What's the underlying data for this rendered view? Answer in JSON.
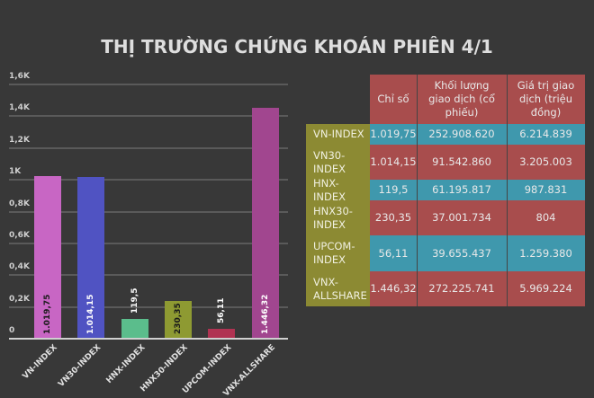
{
  "title": "THỊ TRƯỜNG CHỨNG KHOÁN PHIÊN 4/1",
  "chart_data": {
    "type": "bar",
    "title": "THỊ TRƯỜNG CHỨNG KHOÁN PHIÊN 4/1",
    "categories": [
      "VN-INDEX",
      "VN30-INDEX",
      "HNX-INDEX",
      "HNX30-INDEX",
      "UPCOM-INDEX",
      "VNX-ALLSHARE"
    ],
    "values": [
      1019.75,
      1014.15,
      119.5,
      230.35,
      56.11,
      1446.32
    ],
    "value_labels": [
      "1.019,75",
      "1.014,15",
      "119,5",
      "230,35",
      "56,11",
      "1.446,32"
    ],
    "colors": [
      "#c866c4",
      "#5053c2",
      "#5bbd8c",
      "#8e9a32",
      "#b03352",
      "#a1468f"
    ],
    "yticks": [
      "0",
      "0,2K",
      "0,4K",
      "0,6K",
      "0,8K",
      "1K",
      "1,2K",
      "1,4K",
      "1,6K"
    ],
    "ylim": [
      0,
      1600
    ],
    "xlabel": "",
    "ylabel": "",
    "grid": true,
    "legend": "none"
  },
  "table": {
    "headers": [
      "Chỉ số",
      "Khối lượng giao dịch (cổ phiếu)",
      "Giá trị giao dịch (triệu đồng)"
    ],
    "rows": [
      {
        "name": "VN-INDEX",
        "index": "1.019,75",
        "volume": "252.908.620",
        "value": "6.214.839"
      },
      {
        "name": "VN30-INDEX",
        "index": "1.014,15",
        "volume": "91.542.860",
        "value": "3.205.003"
      },
      {
        "name": "HNX-INDEX",
        "index": "119,5",
        "volume": "61.195.817",
        "value": "987.831"
      },
      {
        "name": "HNX30-INDEX",
        "index": "230,35",
        "volume": "37.001.734",
        "value": "804"
      },
      {
        "name": "UPCOM-INDEX",
        "index": "56,11",
        "volume": "39.655.437",
        "value": "1.259.380"
      },
      {
        "name": "VNX-ALLSHARE",
        "index": "1.446,32",
        "volume": "272.225.741",
        "value": "5.969.224"
      }
    ],
    "colors": {
      "header": "#a84d4d",
      "row_red": "#a84d4d",
      "row_teal": "#3f98ad",
      "row_label": "#8c8a33"
    }
  }
}
